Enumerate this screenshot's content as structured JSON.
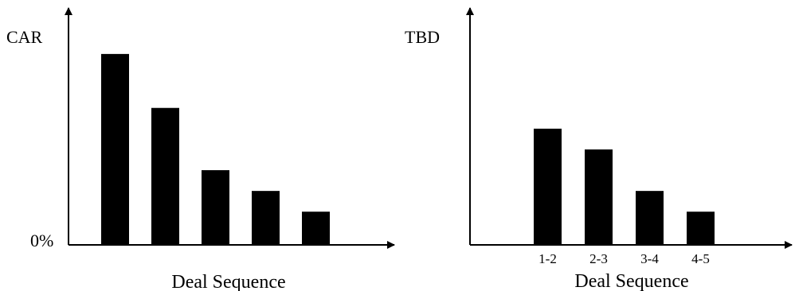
{
  "chart_data": [
    {
      "type": "bar",
      "title": "",
      "ylabel": "CAR",
      "xlabel": "Deal Sequence",
      "y_origin_label": "0%",
      "categories": [
        "",
        "",
        "",
        "",
        ""
      ],
      "values": [
        9.2,
        6.6,
        3.6,
        2.6,
        1.6
      ],
      "ylim": [
        0,
        10
      ],
      "grid": false,
      "legend": "none",
      "bar_color": "#000000"
    },
    {
      "type": "bar",
      "title": "",
      "ylabel": "TBD",
      "xlabel": "Deal Sequence",
      "categories": [
        "1-2",
        "2-3",
        "3-4",
        "4-5"
      ],
      "values": [
        5.6,
        4.6,
        2.6,
        1.6
      ],
      "ylim": [
        0,
        10
      ],
      "grid": false,
      "legend": "none",
      "bar_color": "#000000"
    }
  ]
}
